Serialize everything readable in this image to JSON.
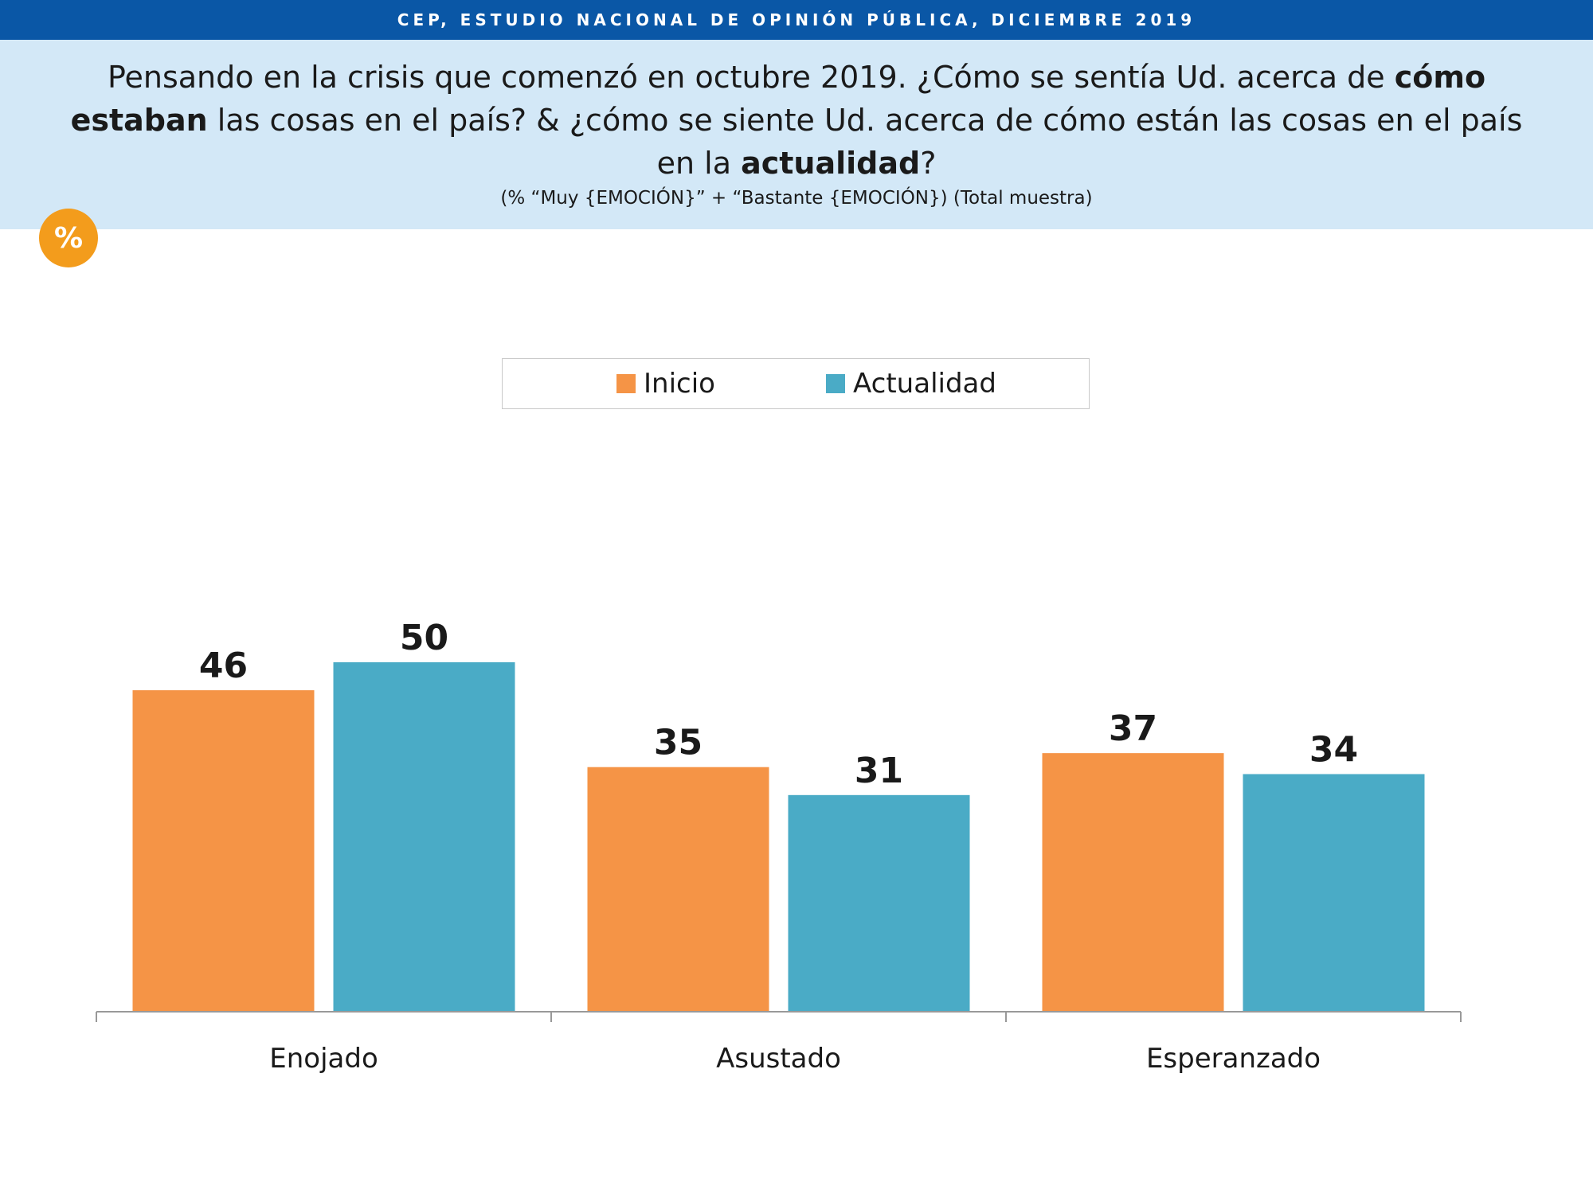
{
  "banner": {
    "title": "CEP, ESTUDIO NACIONAL DE OPINIÓN PÚBLICA, DICIEMBRE 2019"
  },
  "question": {
    "part1": "Pensando en la crisis que comenzó en octubre 2019. ¿Cómo se sentía Ud. acerca de ",
    "bold1": "cómo estaban",
    "part2": " las cosas en el país? & ¿cómo se siente Ud. acerca de cómo están las cosas en el país en la ",
    "bold2": "actualidad",
    "part3": "?",
    "note": "(% “Muy {EMOCIÓN}” + “Bastante {EMOCIÓN}) (Total muestra)"
  },
  "badge": {
    "symbol": "%",
    "color": "#f39c1c"
  },
  "colors": {
    "inicio": "#f59446",
    "actualidad": "#4aabc6",
    "banner": "#0a57a6",
    "panel": "#d3e8f7",
    "axis": "#999999"
  },
  "chart_data": {
    "type": "bar",
    "categories": [
      "Enojado",
      "Asustado",
      "Esperanzado"
    ],
    "series": [
      {
        "name": "Inicio",
        "values": [
          46,
          35,
          37
        ]
      },
      {
        "name": "Actualidad",
        "values": [
          50,
          31,
          34
        ]
      }
    ],
    "ylim": [
      0,
      50
    ],
    "grid": false,
    "legend_position": "top",
    "data_labels": true
  }
}
